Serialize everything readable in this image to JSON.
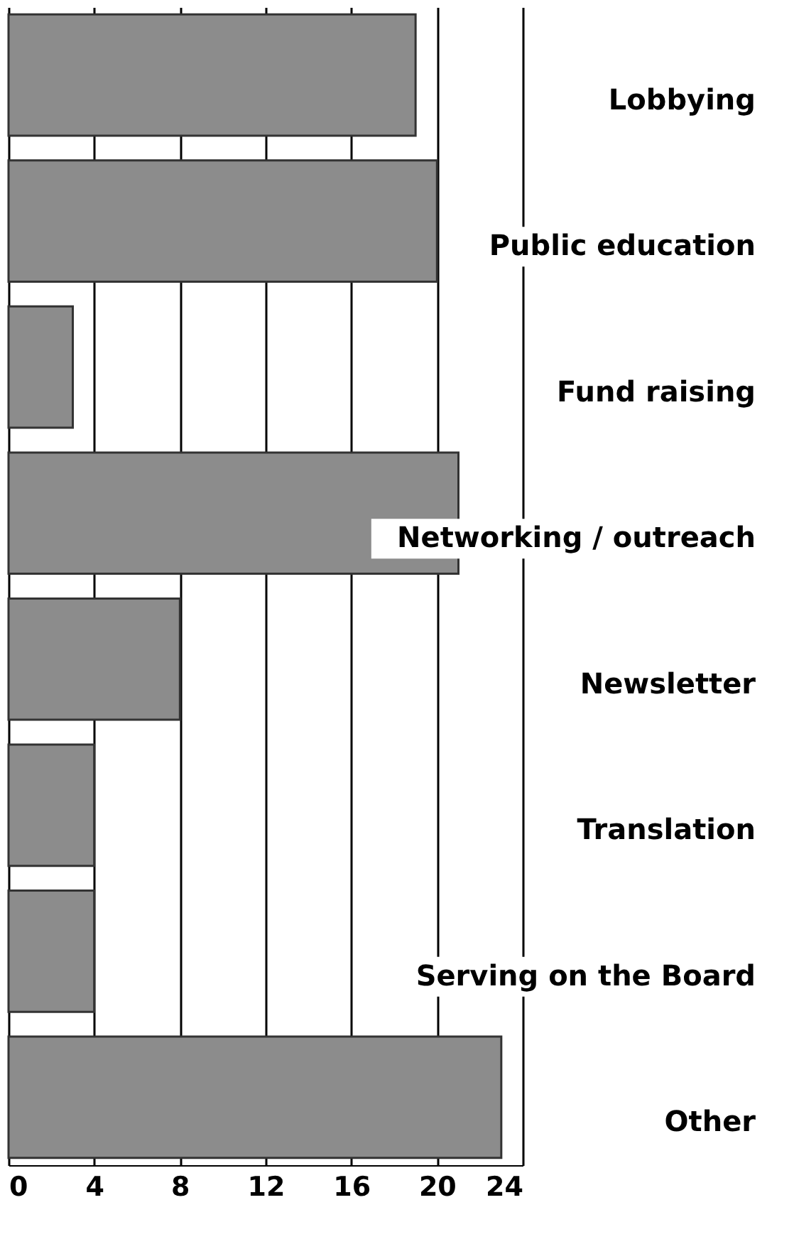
{
  "chart_data": {
    "type": "bar",
    "orientation": "horizontal",
    "categories": [
      "Lobbying",
      "Public education",
      "Fund raising",
      "Networking / outreach",
      "Newsletter",
      "Translation",
      "Serving on the Board",
      "Other"
    ],
    "values": [
      19,
      20,
      3,
      21,
      8,
      4,
      4,
      23
    ],
    "color": "#8c8c8c",
    "xlim": [
      0,
      24
    ],
    "xticks": [
      0,
      4,
      8,
      12,
      16,
      20,
      24
    ],
    "grid": "x"
  }
}
